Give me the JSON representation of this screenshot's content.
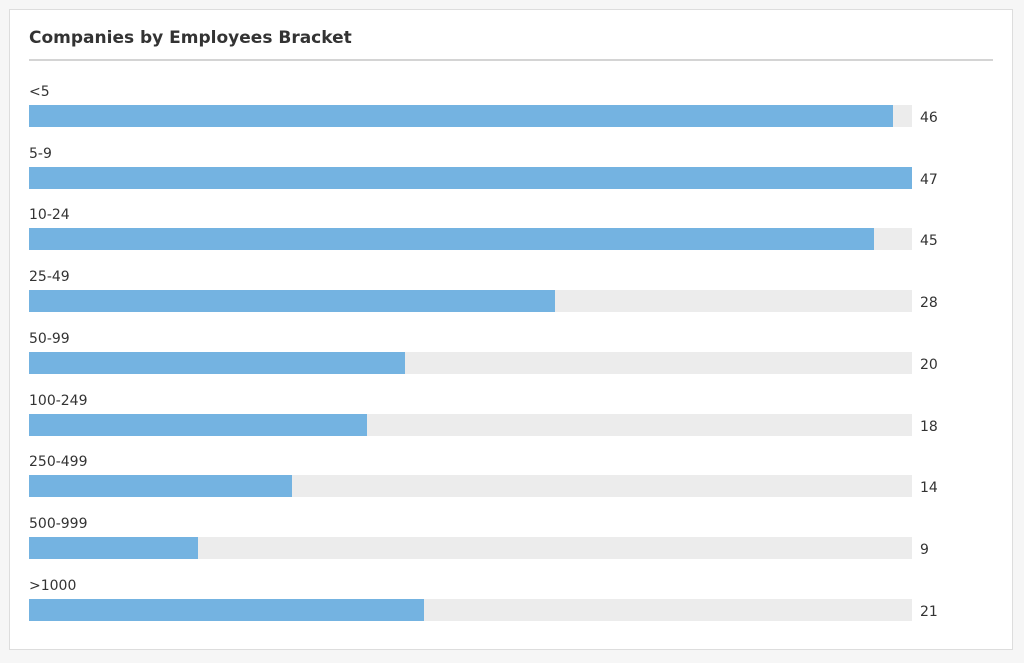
{
  "chart_data": {
    "type": "bar",
    "orientation": "horizontal",
    "title": "Companies by Employees Bracket",
    "categories": [
      "<5",
      "5-9",
      "10-24",
      "25-49",
      "50-99",
      "100-249",
      "250-499",
      "500-999",
      ">1000"
    ],
    "values": [
      46,
      47,
      45,
      28,
      20,
      18,
      14,
      9,
      21
    ],
    "xlim": [
      0,
      47
    ],
    "grid": false,
    "legend": "none"
  },
  "colors": {
    "bar_fill": "#74b3e1",
    "bar_track": "#ececec",
    "text": "#333333"
  }
}
